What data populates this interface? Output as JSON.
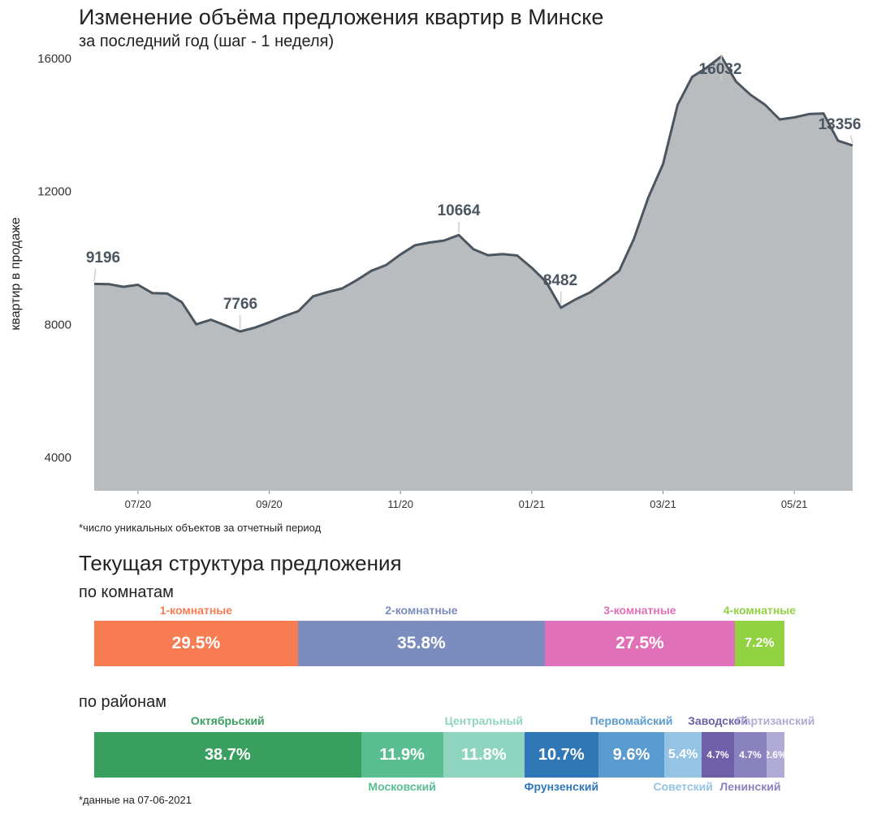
{
  "header": {
    "title": "Изменение объёма предложения квартир в Минске",
    "subtitle": "за последний год (шаг - 1 неделя)"
  },
  "chart_data": {
    "type": "area",
    "title": "Изменение объёма предложения квартир в Минске",
    "subtitle": "за последний год (шаг - 1 неделя)",
    "ylabel": "квартир в продаже",
    "xlabel": "",
    "ylim": [
      2980,
      16020
    ],
    "yticks": [
      4000,
      8000,
      12000,
      16000
    ],
    "ytick_labels": [
      "4000",
      "8000",
      "12000",
      "16000"
    ],
    "xticks": [
      {
        "label": "07/20",
        "week": 3
      },
      {
        "label": "09/20",
        "week": 12
      },
      {
        "label": "11/20",
        "week": 21
      },
      {
        "label": "01/21",
        "week": 30
      },
      {
        "label": "03/21",
        "week": 39
      },
      {
        "label": "05/21",
        "week": 48
      }
    ],
    "values": [
      9196,
      9190,
      9110,
      9170,
      8920,
      8910,
      8650,
      7980,
      8120,
      7950,
      7766,
      7880,
      8040,
      8220,
      8380,
      8820,
      8950,
      9060,
      9310,
      9590,
      9760,
      10080,
      10360,
      10440,
      10500,
      10664,
      10240,
      10060,
      10090,
      10050,
      9680,
      9250,
      8482,
      8730,
      8940,
      9250,
      9590,
      10550,
      11800,
      12800,
      14580,
      15420,
      15700,
      16032,
      15280,
      14880,
      14580,
      14140,
      14200,
      14300,
      14320,
      13500,
      13356
    ],
    "annotations": [
      {
        "week": 0,
        "value": 9196,
        "label": "9196"
      },
      {
        "week": 10,
        "value": 7766,
        "label": "7766"
      },
      {
        "week": 25,
        "value": 10664,
        "label": "10664"
      },
      {
        "week": 32,
        "value": 8482,
        "label": "8482"
      },
      {
        "week": 43,
        "value": 16032,
        "label": "16032"
      },
      {
        "week": 52,
        "value": 13356,
        "label": "13356"
      }
    ],
    "area_color": "#b8bcbe",
    "line_color": "#4b5661"
  },
  "footnote_chart": "*число уникальных объектов за отчетный период",
  "structure": {
    "title": "Текущая структура предложения",
    "rooms": {
      "title": "по комнатам",
      "segments": [
        {
          "name": "1-комнатные",
          "value": 29.5,
          "label": "29.5%",
          "color": "#f87c52",
          "label_color": "#f87c52"
        },
        {
          "name": "2-комнатные",
          "value": 35.8,
          "label": "35.8%",
          "color": "#7b8dbf",
          "label_color": "#7b8dbf"
        },
        {
          "name": "3-комнатные",
          "value": 27.5,
          "label": "27.5%",
          "color": "#e070b8",
          "label_color": "#e070b8"
        },
        {
          "name": "4-комнатные",
          "value": 7.2,
          "label": "7.2%",
          "color": "#91d142",
          "label_color": "#91d142"
        }
      ]
    },
    "districts": {
      "title": "по районам",
      "segments": [
        {
          "name": "Октябрьский",
          "value": 38.7,
          "label": "38.7%",
          "color": "#389f5f",
          "label_color": "#389f5f",
          "pos": "top"
        },
        {
          "name": "Московский",
          "value": 11.9,
          "label": "11.9%",
          "color": "#5bbd92",
          "label_color": "#5bbd92",
          "pos": "bottom"
        },
        {
          "name": "Центральный",
          "value": 11.8,
          "label": "11.8%",
          "color": "#8fd4bf",
          "label_color": "#8fd4bf",
          "pos": "top"
        },
        {
          "name": "Фрунзенский",
          "value": 10.7,
          "label": "10.7%",
          "color": "#2f77b7",
          "label_color": "#2f77b7",
          "pos": "bottom"
        },
        {
          "name": "Первомайский",
          "value": 9.6,
          "label": "9.6%",
          "color": "#5a9bd0",
          "label_color": "#5a9bd0",
          "pos": "top"
        },
        {
          "name": "Советский",
          "value": 5.4,
          "label": "5.4%",
          "color": "#94c3e3",
          "label_color": "#94c3e3",
          "pos": "bottom"
        },
        {
          "name": "Заводской",
          "value": 4.7,
          "label": "4.7%",
          "color": "#6f5ea8",
          "label_color": "#6f5ea8",
          "pos": "top"
        },
        {
          "name": "Ленинский",
          "value": 4.7,
          "label": "4.7%",
          "color": "#8a82bf",
          "label_color": "#8a82bf",
          "pos": "bottom"
        },
        {
          "name": "Партизанский",
          "value": 2.6,
          "label": "2.6%",
          "color": "#b0aad6",
          "label_color": "#b0aad6",
          "pos": "top"
        }
      ]
    }
  },
  "footnote_data": "*данные на 07-06-2021"
}
